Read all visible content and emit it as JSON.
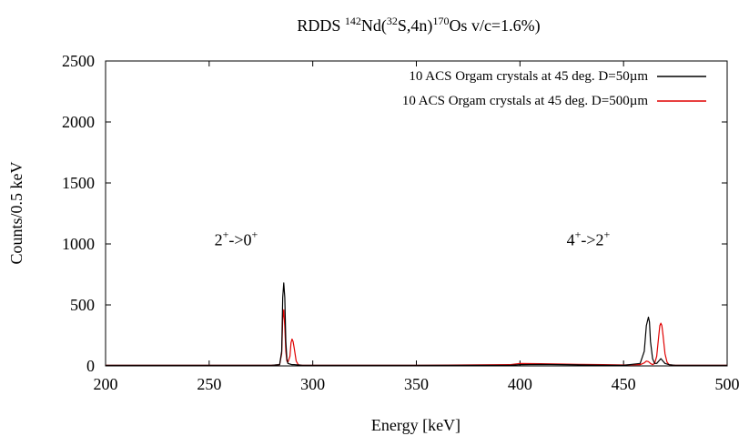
{
  "chart_data": {
    "type": "line",
    "title": {
      "prefix": "RDDS ",
      "mass1": "142",
      "mid1": "Nd(",
      "mass2": "32",
      "mid2": "S,4n)",
      "mass3": "170",
      "suffix": "Os v/c=1.6%)"
    },
    "xlabel": "Energy [keV]",
    "ylabel": "Counts/0.5 keV",
    "xlim": [
      200,
      500
    ],
    "ylim": [
      0,
      2500
    ],
    "xticks": [
      "200",
      "250",
      "300",
      "350",
      "400",
      "450",
      "500"
    ],
    "yticks": [
      "0",
      "500",
      "1000",
      "1500",
      "2000",
      "2500"
    ],
    "grid": false,
    "legend_position": "top-right",
    "annotations": [
      {
        "base1": "2",
        "sup1": "+",
        "arrow": "->",
        "base2": "0",
        "sup2": "+",
        "x": 263,
        "y": 990
      },
      {
        "base1": "4",
        "sup1": "+",
        "arrow": "->",
        "base2": "2",
        "sup2": "+",
        "x": 433,
        "y": 990
      }
    ],
    "series": [
      {
        "name": "10 ACS Orgam crystals at 45 deg. D=50µm",
        "color": "#000000",
        "x": [
          200,
          250,
          280,
          284,
          285,
          285.5,
          286,
          286.5,
          287,
          287.5,
          288,
          289,
          290,
          291,
          295,
          300,
          350,
          395,
          400,
          410,
          420,
          430,
          440,
          450,
          458,
          460,
          461,
          462,
          462.5,
          463,
          464,
          465,
          466,
          467,
          468,
          469,
          470,
          472,
          475,
          480,
          500
        ],
        "y": [
          5,
          5,
          5,
          10,
          120,
          560,
          680,
          560,
          200,
          60,
          20,
          15,
          10,
          10,
          5,
          5,
          5,
          5,
          10,
          12,
          10,
          8,
          6,
          5,
          20,
          120,
          330,
          400,
          360,
          200,
          60,
          20,
          20,
          40,
          60,
          40,
          20,
          10,
          5,
          5,
          5
        ]
      },
      {
        "name": "10 ACS Orgam crystals at 45 deg. D=500µm",
        "color": "#e00000",
        "x": [
          200,
          250,
          280,
          284,
          285,
          285.5,
          286,
          286.5,
          287,
          287.5,
          288,
          289,
          289.5,
          290,
          290.5,
          291,
          292,
          293,
          295,
          300,
          350,
          395,
          400,
          410,
          420,
          430,
          440,
          450,
          458,
          460,
          461,
          462,
          463,
          464,
          465,
          466,
          467,
          467.5,
          468,
          468.5,
          469,
          470,
          471,
          472,
          475,
          480,
          500
        ],
        "y": [
          5,
          5,
          5,
          10,
          100,
          380,
          460,
          320,
          120,
          40,
          30,
          80,
          190,
          220,
          200,
          150,
          40,
          10,
          5,
          5,
          5,
          10,
          20,
          18,
          15,
          12,
          10,
          8,
          10,
          25,
          40,
          35,
          20,
          10,
          20,
          80,
          250,
          330,
          350,
          330,
          260,
          100,
          30,
          10,
          5,
          5,
          5
        ]
      }
    ]
  }
}
